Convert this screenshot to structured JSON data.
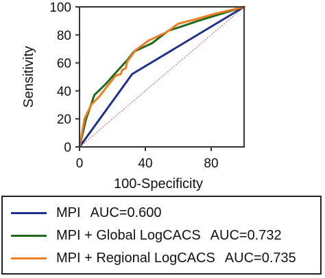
{
  "chart_data": {
    "type": "line",
    "xlabel": "100-Specificity",
    "ylabel": "Sensitivity",
    "xlim": [
      0,
      100
    ],
    "ylim": [
      0,
      100
    ],
    "xticks": [
      "0",
      "40",
      "80"
    ],
    "xtick_values": [
      0,
      40,
      80
    ],
    "yticks": [
      "0",
      "20",
      "40",
      "60",
      "80",
      "100"
    ],
    "ytick_values": [
      0,
      20,
      40,
      60,
      80,
      100
    ],
    "grid": false,
    "legend_position": "bottom",
    "diagonal": {
      "x": [
        0,
        100
      ],
      "y": [
        0,
        100
      ],
      "color": "#c0504d"
    },
    "series": [
      {
        "name": "MPI",
        "auc_label": "AUC=0.600",
        "color": "#1f2f8f",
        "x": [
          0,
          32,
          100
        ],
        "y": [
          0,
          52,
          100
        ]
      },
      {
        "name": "MPI + Global LogCACS",
        "auc_label": "AUC=0.732",
        "color": "#1e6b1e",
        "x": [
          0,
          4,
          9,
          16,
          22,
          29,
          33,
          44,
          54,
          62,
          72,
          86,
          100
        ],
        "y": [
          0,
          20,
          37,
          45,
          53,
          62,
          68,
          74,
          83,
          86,
          90,
          95,
          100
        ]
      },
      {
        "name": "MPI + Regional LogCACS",
        "auc_label": "AUC=0.735",
        "color": "#f07c20",
        "x": [
          0,
          3,
          7,
          12,
          18,
          22,
          25,
          26,
          28,
          29,
          34,
          42,
          53,
          60,
          70,
          82,
          100
        ],
        "y": [
          0,
          20,
          30,
          36,
          45,
          51,
          52,
          55,
          56,
          61,
          69,
          76,
          82,
          88,
          91,
          95,
          100
        ]
      }
    ]
  }
}
